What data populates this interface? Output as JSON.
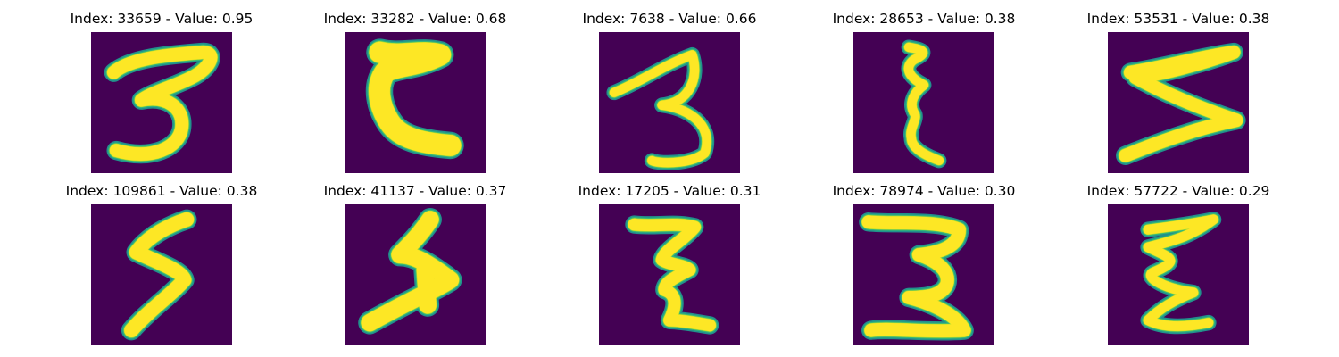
{
  "colors": {
    "background": "#440154",
    "stroke_core": "#fde725",
    "stroke_mid": "#b5de2b",
    "stroke_edge": "#35b779",
    "halo": "#21918c"
  },
  "panels": [
    {
      "title": "Index: 33659 - Value: 0.95",
      "glyph": "3"
    },
    {
      "title": "Index: 33282 - Value: 0.68",
      "glyph": "5"
    },
    {
      "title": "Index: 7638 - Value: 0.66",
      "glyph": "3"
    },
    {
      "title": "Index: 28653 - Value: 0.38",
      "glyph": "3"
    },
    {
      "title": "Index: 53531 - Value: 0.38",
      "glyph": "3"
    },
    {
      "title": "Index: 109861 - Value: 0.38",
      "glyph": "5"
    },
    {
      "title": "Index: 41137 - Value: 0.37",
      "glyph": "5"
    },
    {
      "title": "Index: 17205 - Value: 0.31",
      "glyph": "3"
    },
    {
      "title": "Index: 78974 - Value: 0.30",
      "glyph": "3"
    },
    {
      "title": "Index: 57722 - Value: 0.29",
      "glyph": "3"
    }
  ]
}
